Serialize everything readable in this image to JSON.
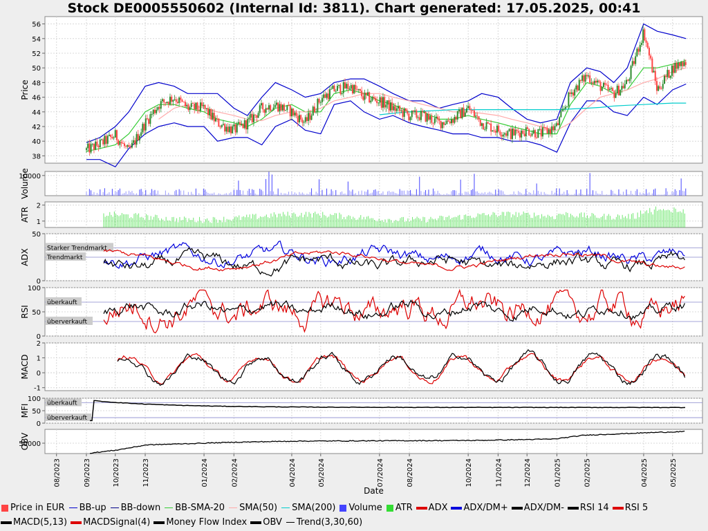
{
  "title": "Stock DE0005550602 (Internal Id: 3811). Chart generated: 17.05.2025, 00:41",
  "colors": {
    "price_up": "#2e8b2e",
    "price_down": "#ff4444",
    "bb_band": "#0000cc",
    "bb_sma20": "#33cc33",
    "sma50": "#ffaaaa",
    "sma200": "#00cccc",
    "volume": "#4444ff",
    "atr": "#33dd33",
    "adx": "#dd0000",
    "dm_plus": "#0000dd",
    "dm_minus": "#000000",
    "rsi14": "#000000",
    "rsi5": "#dd0000",
    "macd": "#000000",
    "macd_signal": "#dd0000",
    "mfi": "#000000",
    "obv": "#000000"
  },
  "chart_data": [
    {
      "type": "line",
      "panel": "price",
      "ylabel": "Price",
      "ylim": [
        37,
        57
      ],
      "yticks": [
        38,
        40,
        42,
        44,
        46,
        48,
        50,
        52,
        54,
        56
      ],
      "x": [
        "2023-09-01",
        "2023-09-15",
        "2023-10-01",
        "2023-10-15",
        "2023-11-01",
        "2023-11-15",
        "2023-12-01",
        "2023-12-15",
        "2024-01-01",
        "2024-01-15",
        "2024-02-01",
        "2024-02-15",
        "2024-03-01",
        "2024-03-15",
        "2024-04-01",
        "2024-04-15",
        "2024-05-01",
        "2024-05-15",
        "2024-06-01",
        "2024-06-15",
        "2024-07-01",
        "2024-07-15",
        "2024-08-01",
        "2024-08-15",
        "2024-09-01",
        "2024-09-15",
        "2024-10-01",
        "2024-10-15",
        "2024-11-01",
        "2024-11-15",
        "2024-12-01",
        "2024-12-15",
        "2025-01-01",
        "2025-01-15",
        "2025-02-01",
        "2025-02-15",
        "2025-03-01",
        "2025-03-15",
        "2025-04-01",
        "2025-04-15",
        "2025-05-01",
        "2025-05-15"
      ],
      "series": [
        {
          "name": "Price in EUR",
          "values": [
            38.8,
            39.6,
            40.8,
            38.5,
            42.5,
            45,
            46,
            44.5,
            44.5,
            42.5,
            41.5,
            42.5,
            44.5,
            45,
            44,
            42.5,
            45.8,
            47,
            47.5,
            46,
            45.5,
            44.5,
            43.5,
            43.5,
            42.5,
            43,
            44.5,
            42.5,
            41.5,
            41,
            41.5,
            41,
            42,
            46.5,
            49,
            47.5,
            46.5,
            48,
            55,
            47,
            50,
            51
          ]
        },
        {
          "name": "BB-up",
          "values": [
            39.8,
            40.5,
            42,
            44,
            47.5,
            48,
            47.5,
            46.5,
            46.5,
            46.5,
            44.5,
            43.5,
            46,
            48,
            47,
            46,
            46.5,
            48,
            48.5,
            48.5,
            47.5,
            46.5,
            45.5,
            45.5,
            44.5,
            45,
            45.5,
            46.5,
            46,
            44.5,
            43,
            42.5,
            43,
            48,
            50,
            49.5,
            48,
            50,
            56,
            55,
            54.5,
            54
          ]
        },
        {
          "name": "BB-down",
          "values": [
            37.5,
            37.5,
            36.5,
            39,
            41,
            42,
            42.5,
            42,
            42,
            40,
            40.5,
            40.5,
            39.5,
            42,
            43,
            41.5,
            41,
            45,
            45.5,
            44,
            43,
            43.5,
            42.5,
            42,
            41.5,
            41,
            41,
            40.5,
            40.5,
            40,
            40,
            39.5,
            38.5,
            42.5,
            45.5,
            45.5,
            44,
            43.5,
            46,
            45,
            47,
            47.8
          ]
        },
        {
          "name": "BB-SMA-20",
          "values": [
            38.6,
            39,
            39.5,
            41,
            44,
            45,
            45,
            44.5,
            44,
            43,
            42.5,
            42,
            43,
            44.5,
            45,
            44,
            44,
            46.5,
            47,
            46.5,
            45.5,
            45,
            44,
            44,
            43,
            43,
            43.5,
            43,
            42.5,
            42,
            41.5,
            41,
            41,
            45,
            48,
            47.5,
            46.5,
            47,
            50,
            50,
            50.5,
            51
          ]
        },
        {
          "name": "SMA(50)",
          "values": [
            null,
            null,
            null,
            null,
            null,
            43,
            44.5,
            45,
            44.5,
            44,
            43.5,
            43,
            42.8,
            43.5,
            44,
            44,
            44.5,
            45.5,
            46,
            46.5,
            46.5,
            46,
            45.5,
            45,
            44.5,
            44,
            44,
            43.8,
            43.5,
            43,
            42.5,
            42,
            41.5,
            42.5,
            44.5,
            46,
            46.5,
            47,
            48,
            48.5,
            49.5,
            50
          ]
        },
        {
          "name": "SMA(200)",
          "values": [
            null,
            null,
            null,
            null,
            null,
            null,
            null,
            null,
            null,
            null,
            null,
            null,
            null,
            null,
            null,
            null,
            null,
            null,
            null,
            null,
            43.6,
            43.8,
            44,
            44.1,
            44.2,
            44.3,
            44.3,
            44.3,
            44.3,
            44.3,
            44.3,
            44.3,
            44.3,
            44.4,
            44.5,
            44.6,
            44.8,
            44.9,
            45,
            45.1,
            45.2,
            45.2
          ]
        }
      ]
    },
    {
      "type": "bar",
      "panel": "volume",
      "ylabel": "Volume",
      "ylim": [
        0,
        12000
      ],
      "yticks": [
        10000
      ],
      "series": [
        {
          "name": "Volume"
        }
      ]
    },
    {
      "type": "bar",
      "panel": "atr",
      "ylabel": "ATR",
      "ylim": [
        0.6,
        2.2
      ],
      "yticks": [
        1,
        2
      ],
      "series": [
        {
          "name": "ATR"
        }
      ]
    },
    {
      "type": "line",
      "panel": "adx",
      "ylabel": "ADX",
      "ylim": [
        0,
        50
      ],
      "yticks": [
        0,
        50
      ],
      "annotations": [
        "Starker Trendmarkt",
        "Trendmarkt"
      ],
      "series": [
        {
          "name": "ADX"
        },
        {
          "name": "ADX/DM+"
        },
        {
          "name": "ADX/DM-"
        }
      ]
    },
    {
      "type": "line",
      "panel": "rsi",
      "ylabel": "RSI",
      "ylim": [
        0,
        100
      ],
      "yticks": [
        0,
        50,
        100
      ],
      "annotations": [
        "überkauft",
        "überverkauft"
      ],
      "series": [
        {
          "name": "RSI 14"
        },
        {
          "name": "RSI 5"
        }
      ]
    },
    {
      "type": "line",
      "panel": "macd",
      "ylabel": "MACD",
      "ylim": [
        -1.2,
        2
      ],
      "yticks": [
        -1,
        0,
        1,
        2
      ],
      "series": [
        {
          "name": "MACD(5,13)"
        },
        {
          "name": "MACDSignal(4)"
        }
      ]
    },
    {
      "type": "line",
      "panel": "mfi",
      "ylabel": "MFI",
      "ylim": [
        0,
        100
      ],
      "yticks": [
        0,
        50,
        100
      ],
      "annotations": [
        "überkauft",
        "überverkauft"
      ],
      "series": [
        {
          "name": "Money Flow Index"
        }
      ]
    },
    {
      "type": "line",
      "panel": "obv",
      "ylabel": "OBV",
      "ylim": [
        20000,
        90000
      ],
      "yticks": [
        50000
      ],
      "series": [
        {
          "name": "OBV"
        }
      ]
    }
  ],
  "x_axis": {
    "label": "Date",
    "ticks": [
      "08/2023",
      "09/2023",
      "10/2023",
      "11/2023",
      "01/2024",
      "02/2024",
      "04/2024",
      "05/2024",
      "07/2024",
      "08/2024",
      "10/2024",
      "11/2024",
      "12/2024",
      "01/2025",
      "02/2025",
      "04/2025",
      "05/2025"
    ]
  },
  "legend": [
    {
      "label": "Price in EUR",
      "kind": "box",
      "color": "#ff4444"
    },
    {
      "label": "BB-up",
      "kind": "line",
      "color": "#0000cc"
    },
    {
      "label": "BB-down",
      "kind": "line",
      "color": "#000088"
    },
    {
      "label": "BB-SMA-20",
      "kind": "line",
      "color": "#33cc33"
    },
    {
      "label": "SMA(50)",
      "kind": "line",
      "color": "#ffaaaa"
    },
    {
      "label": "SMA(200)",
      "kind": "line",
      "color": "#00cccc"
    },
    {
      "label": "Volume",
      "kind": "box",
      "color": "#4444ff"
    },
    {
      "label": "ATR",
      "kind": "box",
      "color": "#33dd33"
    },
    {
      "label": "ADX",
      "kind": "marker",
      "color": "#dd0000"
    },
    {
      "label": "ADX/DM+",
      "kind": "marker",
      "color": "#0000dd"
    },
    {
      "label": "ADX/DM-",
      "kind": "marker",
      "color": "#000000"
    },
    {
      "label": "RSI 14",
      "kind": "marker",
      "color": "#000000"
    },
    {
      "label": "RSI 5",
      "kind": "marker",
      "color": "#dd0000"
    },
    {
      "label": "MACD(5,13)",
      "kind": "marker",
      "color": "#000000"
    },
    {
      "label": "MACDSignal(4)",
      "kind": "marker",
      "color": "#dd0000"
    },
    {
      "label": "Money Flow Index",
      "kind": "marker",
      "color": "#000000"
    },
    {
      "label": "OBV",
      "kind": "marker",
      "color": "#000000"
    },
    {
      "label": "Trend(3,30,60)",
      "kind": "line",
      "color": "#000000"
    }
  ]
}
